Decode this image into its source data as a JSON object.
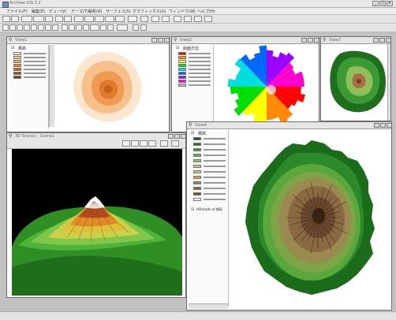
{
  "app": {
    "title": "ArcView GIS 3.2",
    "menus": [
      "ファイル(F)",
      "編集(E)",
      "ビュー(V)",
      "テーマ(T)",
      "解析(A)",
      "サーフェス(S)",
      "グラフィックス(G)",
      "ウィンドウ(W)",
      "ヘルプ(H)"
    ]
  },
  "views": [
    {
      "title": "View1",
      "legend_title": "標高"
    },
    {
      "title": "View2",
      "legend_title": "斜面方位"
    },
    {
      "title": "View3"
    },
    {
      "title": "3D Scene1 : Scene1"
    },
    {
      "title": "View4",
      "legend_title": "標高",
      "hillshade_label": "Hillshade of 標高"
    }
  ],
  "colors": {
    "elevation_orange": [
      "#fbe3c8",
      "#f7c79a",
      "#f2a463",
      "#e8822e",
      "#c9601a",
      "#9c4a14",
      "#6e3410"
    ],
    "aspect_rainbow": [
      "#ff0000",
      "#ff8800",
      "#ffff00",
      "#00dd00",
      "#00dddd",
      "#0066ff",
      "#9900ff",
      "#ff00cc",
      "#bbbbbb"
    ],
    "elevation_green": [
      "#0f5a0f",
      "#1e7a1e",
      "#2e992e",
      "#4fb33f",
      "#7fc65a",
      "#a8d46d",
      "#c9c26a",
      "#c9a35f",
      "#a87b4f",
      "#8a5f3c",
      "#6d4a30",
      "#ffffff"
    ]
  }
}
